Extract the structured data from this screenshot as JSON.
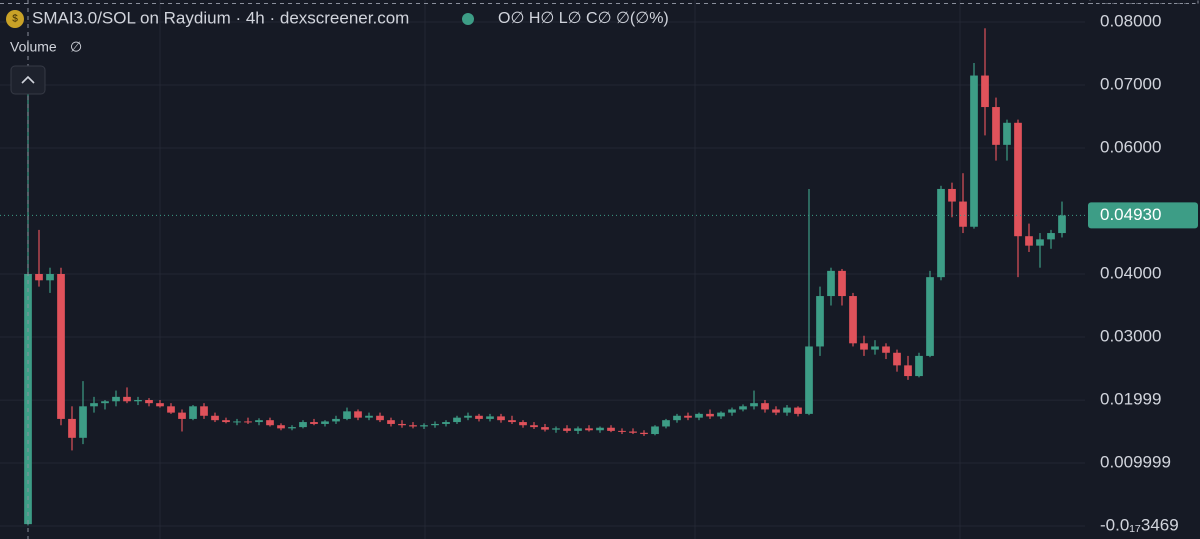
{
  "chart_data": {
    "type": "candlestick",
    "title": "SMAI3.0/SOL on Raydium · 4h · dexscreener.com",
    "ohlc_legend": "O∅ H∅ L∅ C∅ ∅(∅%)",
    "volume_label": "Volume",
    "volume_value": "∅",
    "up_color": "#3d9d86",
    "down_color": "#e0525b",
    "ylim": [
      -0.00206,
      0.08349
    ],
    "yticks": [
      {
        "value": 0.08,
        "label": "0.08000"
      },
      {
        "value": 0.07,
        "label": "0.07000"
      },
      {
        "value": 0.06,
        "label": "0.06000"
      },
      {
        "value": 0.04,
        "label": "0.04000"
      },
      {
        "value": 0.03,
        "label": "0.03000"
      },
      0.01999,
      0.009999,
      {
        "value": -3.469e-18,
        "label": "-0.0₁₇3469"
      }
    ],
    "grid": true,
    "last_price_label": "0.04930",
    "crosshair_price": 0.08342,
    "ohlc": [
      [
        0.0003,
        0.072,
        0.0001,
        0.04
      ],
      [
        0.04,
        0.047,
        0.038,
        0.039
      ],
      [
        0.039,
        0.041,
        0.037,
        0.04
      ],
      [
        0.04,
        0.041,
        0.016,
        0.017
      ],
      [
        0.017,
        0.019,
        0.012,
        0.014
      ],
      [
        0.014,
        0.023,
        0.013,
        0.019
      ],
      [
        0.019,
        0.0205,
        0.018,
        0.0195
      ],
      [
        0.0195,
        0.02,
        0.0185,
        0.0198
      ],
      [
        0.0198,
        0.0215,
        0.019,
        0.0205
      ],
      [
        0.0205,
        0.022,
        0.0195,
        0.0198
      ],
      [
        0.0198,
        0.0205,
        0.0192,
        0.02
      ],
      [
        0.02,
        0.0203,
        0.019,
        0.0195
      ],
      [
        0.0195,
        0.02,
        0.0188,
        0.019
      ],
      [
        0.019,
        0.0195,
        0.0178,
        0.018
      ],
      [
        0.018,
        0.0185,
        0.015,
        0.017
      ],
      [
        0.017,
        0.0192,
        0.0168,
        0.019
      ],
      [
        0.019,
        0.0195,
        0.017,
        0.0175
      ],
      [
        0.0175,
        0.018,
        0.0165,
        0.0168
      ],
      [
        0.0168,
        0.0172,
        0.0163,
        0.0165
      ],
      [
        0.0165,
        0.017,
        0.016,
        0.0166
      ],
      [
        0.0166,
        0.0172,
        0.0162,
        0.0165
      ],
      [
        0.0165,
        0.0171,
        0.016,
        0.0168
      ],
      [
        0.0168,
        0.0172,
        0.0158,
        0.016
      ],
      [
        0.016,
        0.0163,
        0.0152,
        0.0155
      ],
      [
        0.0155,
        0.016,
        0.0152,
        0.0157
      ],
      [
        0.0157,
        0.0168,
        0.0155,
        0.0165
      ],
      [
        0.0165,
        0.017,
        0.016,
        0.0162
      ],
      [
        0.0162,
        0.0168,
        0.0158,
        0.0166
      ],
      [
        0.0166,
        0.0175,
        0.0162,
        0.017
      ],
      [
        0.017,
        0.0188,
        0.0168,
        0.0182
      ],
      [
        0.0182,
        0.0185,
        0.0168,
        0.0172
      ],
      [
        0.0172,
        0.018,
        0.0168,
        0.0175
      ],
      [
        0.0175,
        0.018,
        0.0165,
        0.0168
      ],
      [
        0.0168,
        0.0172,
        0.0158,
        0.0162
      ],
      [
        0.0162,
        0.0168,
        0.0156,
        0.016
      ],
      [
        0.016,
        0.0165,
        0.0155,
        0.0158
      ],
      [
        0.0158,
        0.0163,
        0.0154,
        0.016
      ],
      [
        0.016,
        0.0166,
        0.0156,
        0.0162
      ],
      [
        0.0162,
        0.0168,
        0.0158,
        0.0165
      ],
      [
        0.0165,
        0.0175,
        0.0162,
        0.0172
      ],
      [
        0.0172,
        0.018,
        0.0168,
        0.0175
      ],
      [
        0.0175,
        0.0178,
        0.0166,
        0.017
      ],
      [
        0.017,
        0.0178,
        0.0166,
        0.0174
      ],
      [
        0.0174,
        0.0178,
        0.0164,
        0.0168
      ],
      [
        0.0168,
        0.0175,
        0.0162,
        0.0165
      ],
      [
        0.0165,
        0.0168,
        0.0156,
        0.016
      ],
      [
        0.016,
        0.0165,
        0.0154,
        0.0157
      ],
      [
        0.0157,
        0.0162,
        0.015,
        0.0153
      ],
      [
        0.0153,
        0.0158,
        0.0148,
        0.0155
      ],
      [
        0.0155,
        0.016,
        0.0148,
        0.0151
      ],
      [
        0.0151,
        0.0158,
        0.0146,
        0.0155
      ],
      [
        0.0155,
        0.016,
        0.015,
        0.0152
      ],
      [
        0.0152,
        0.0158,
        0.0148,
        0.0156
      ],
      [
        0.0156,
        0.016,
        0.0149,
        0.0151
      ],
      [
        0.0151,
        0.0155,
        0.0146,
        0.015
      ],
      [
        0.015,
        0.0155,
        0.0146,
        0.0148
      ],
      [
        0.0148,
        0.0152,
        0.0143,
        0.0146
      ],
      [
        0.0146,
        0.016,
        0.0144,
        0.0158
      ],
      [
        0.0158,
        0.017,
        0.0155,
        0.0168
      ],
      [
        0.0168,
        0.0178,
        0.0164,
        0.0175
      ],
      [
        0.0175,
        0.018,
        0.0168,
        0.0172
      ],
      [
        0.0172,
        0.018,
        0.0168,
        0.0178
      ],
      [
        0.0178,
        0.0185,
        0.017,
        0.0174
      ],
      [
        0.0174,
        0.0182,
        0.017,
        0.018
      ],
      [
        0.018,
        0.0188,
        0.0175,
        0.0185
      ],
      [
        0.0185,
        0.0193,
        0.0182,
        0.019
      ],
      [
        0.019,
        0.0215,
        0.0185,
        0.0195
      ],
      [
        0.0195,
        0.02,
        0.018,
        0.0185
      ],
      [
        0.0185,
        0.019,
        0.0176,
        0.018
      ],
      [
        0.018,
        0.0192,
        0.0175,
        0.0188
      ],
      [
        0.0188,
        0.019,
        0.0174,
        0.0178
      ],
      [
        0.0178,
        0.0535,
        0.0176,
        0.0285
      ],
      [
        0.0285,
        0.038,
        0.027,
        0.0365
      ],
      [
        0.0365,
        0.041,
        0.035,
        0.0405
      ],
      [
        0.0405,
        0.0408,
        0.035,
        0.0365
      ],
      [
        0.0365,
        0.037,
        0.0285,
        0.029
      ],
      [
        0.029,
        0.0302,
        0.027,
        0.028
      ],
      [
        0.028,
        0.0295,
        0.0272,
        0.0285
      ],
      [
        0.0285,
        0.029,
        0.0265,
        0.0275
      ],
      [
        0.0275,
        0.028,
        0.0245,
        0.0255
      ],
      [
        0.0255,
        0.027,
        0.0232,
        0.0238
      ],
      [
        0.0238,
        0.0275,
        0.0236,
        0.027
      ],
      [
        0.027,
        0.0405,
        0.0268,
        0.0395
      ],
      [
        0.0395,
        0.054,
        0.039,
        0.0535
      ],
      [
        0.0535,
        0.0545,
        0.049,
        0.0515
      ],
      [
        0.0515,
        0.056,
        0.0465,
        0.0475
      ],
      [
        0.0475,
        0.0735,
        0.0472,
        0.0715
      ],
      [
        0.0715,
        0.079,
        0.062,
        0.0665
      ],
      [
        0.0665,
        0.068,
        0.058,
        0.0605
      ],
      [
        0.0605,
        0.0645,
        0.058,
        0.064
      ],
      [
        0.064,
        0.0645,
        0.0395,
        0.046
      ],
      [
        0.046,
        0.048,
        0.0435,
        0.0445
      ],
      [
        0.0445,
        0.0465,
        0.041,
        0.0455
      ],
      [
        0.0455,
        0.047,
        0.044,
        0.0465
      ],
      [
        0.0465,
        0.0515,
        0.0458,
        0.0493
      ]
    ]
  }
}
